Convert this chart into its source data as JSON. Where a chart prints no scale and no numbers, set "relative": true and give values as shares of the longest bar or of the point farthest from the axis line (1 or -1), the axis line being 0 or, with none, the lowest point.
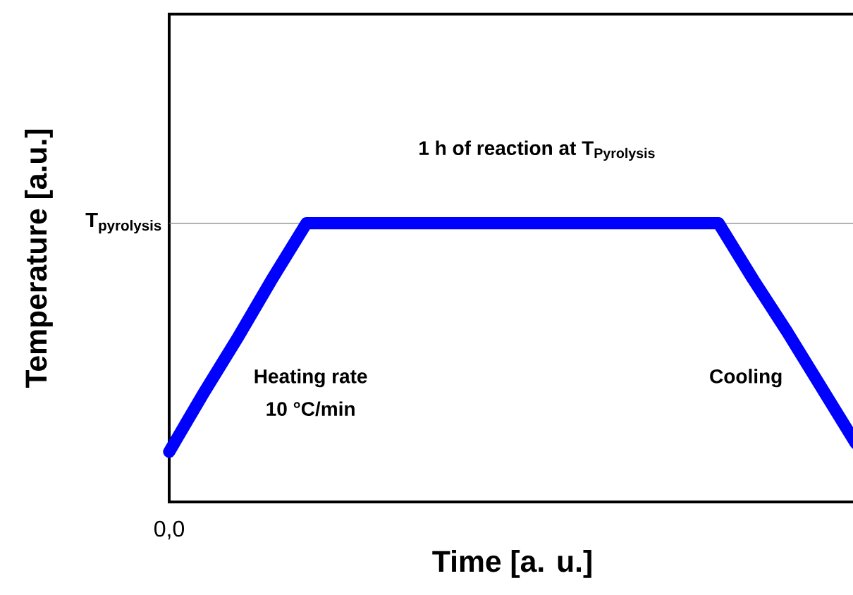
{
  "chart_data": {
    "type": "line",
    "relative": true,
    "xlabel": "Time [a. u.]",
    "ylabel": "Temperature [a.u.]",
    "categories": [
      null,
      null,
      null,
      null,
      null,
      null,
      null,
      null,
      null,
      null,
      null,
      null,
      null,
      null,
      null,
      null,
      null,
      null,
      null,
      null,
      null
    ],
    "values": [
      0.18,
      0.39,
      0.59,
      0.8,
      1,
      1,
      1,
      1,
      1,
      1,
      1,
      1,
      1,
      1,
      1,
      1,
      1,
      0.8,
      0.61,
      0.41,
      0.21
    ],
    "color": "#0000ff",
    "line_style": "solid",
    "marker": "none",
    "ref_lines": [
      {
        "axis": "y",
        "value": 1,
        "label": "\\mathbf{T_{pyrolysis}}",
        "color": "#808080"
      }
    ],
    "annotations": [
      "\\mathbf{1\\ h\\ of\\ reaction\\ at\\ T_{Pyrolysis}}",
      "Heating rate",
      "10 °C/min",
      "Cooling",
      "0,0"
    ]
  }
}
